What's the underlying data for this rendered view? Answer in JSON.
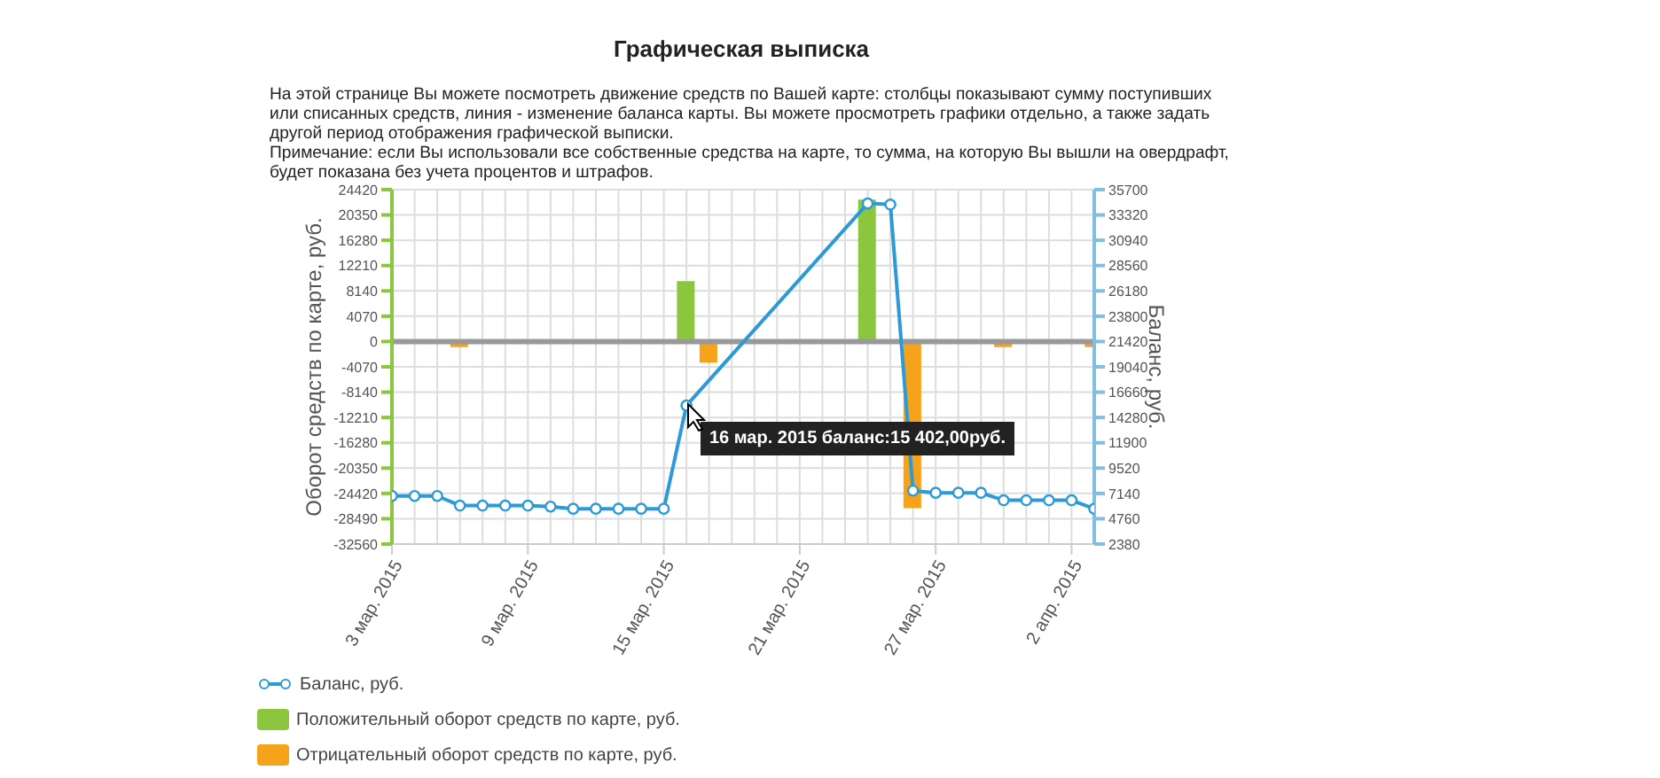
{
  "chart_data": {
    "type": "bar",
    "title": "Графическая выписка",
    "annotations": [
      "На этой странице Вы можете посмотреть движение средств по Вашей карте: столбцы показывают сумму поступивших или списанных средств, линия - изменение баланса карты. Вы можете просмотреть графики отдельно, а также задать другой период отображения графической выписки.",
      "Примечание: если Вы использовали все собственные средства на карте, то сумма, на которую Вы вышли на овердрафт, будет показана без учета процентов и штрафов.",
      "16 мар. 2015 баланс:15 402,00руб."
    ],
    "ylabel": "Оборот средств по карте, руб.",
    "y2label": "Баланс, руб.",
    "series": [
      {
        "name": "Баланс, руб.",
        "type": "line",
        "axis": "y2",
        "color": "#2b9ad6",
        "x": [
          "2015-03-03",
          "2015-03-04",
          "2015-03-05",
          "2015-03-06",
          "2015-03-07",
          "2015-03-08",
          "2015-03-09",
          "2015-03-10",
          "2015-03-11",
          "2015-03-12",
          "2015-03-13",
          "2015-03-14",
          "2015-03-15",
          "2015-03-16",
          "2015-03-24",
          "2015-03-25",
          "2015-03-26",
          "2015-03-27",
          "2015-03-28",
          "2015-03-29",
          "2015-03-30",
          "2015-03-31",
          "2015-04-01",
          "2015-04-02",
          "2015-04-03"
        ],
        "values": [
          6900,
          6900,
          6900,
          6000,
          6000,
          6000,
          6000,
          5900,
          5700,
          5700,
          5700,
          5700,
          5700,
          15402,
          34400,
          34300,
          7400,
          7200,
          7200,
          7200,
          6500,
          6500,
          6500,
          6500,
          5700
        ]
      },
      {
        "name": "Положительный оборот средств по карте, руб.",
        "color": "#8cc63f",
        "x": [
          "2015-03-16",
          "2015-03-24"
        ],
        "values": [
          9700,
          22800
        ]
      },
      {
        "name": "Отрицательный оборот средств по карте, руб.",
        "color": "#f7a21b",
        "x": [
          "2015-03-06",
          "2015-03-10",
          "2015-03-11",
          "2015-03-17",
          "2015-03-25",
          "2015-03-26",
          "2015-03-27",
          "2015-03-30",
          "2015-04-03"
        ],
        "values": [
          -900,
          null,
          null,
          -3400,
          null,
          -26800,
          null,
          -900,
          -900
        ]
      }
    ],
    "xlim": [
      "2015-03-03",
      "2015-04-03"
    ],
    "xticks": [
      {
        "value": "2015-03-03",
        "label": "3 мар. 2015"
      },
      {
        "value": "2015-03-09",
        "label": "9 мар. 2015"
      },
      {
        "value": "2015-03-15",
        "label": "15 мар. 2015"
      },
      {
        "value": "2015-03-21",
        "label": "21 мар. 2015"
      },
      {
        "value": "2015-03-27",
        "label": "27 мар. 2015"
      },
      {
        "value": "2015-04-02",
        "label": "2 апр. 2015"
      }
    ],
    "ylim": [
      -32560,
      24420
    ],
    "yticks": [
      -32560,
      -28490,
      -24420,
      -20350,
      -16280,
      -12210,
      -8140,
      -4070,
      0,
      4070,
      8140,
      12210,
      16280,
      20350,
      24420
    ],
    "y2lim": [
      2380,
      35700
    ],
    "y2ticks": [
      2380,
      4760,
      7140,
      9520,
      11900,
      14280,
      16660,
      19040,
      21420,
      23800,
      26180,
      28560,
      30940,
      33320,
      35700
    ],
    "ref_lines": [
      {
        "axis": "y",
        "value": 0,
        "color": "#999999"
      }
    ],
    "grid": true,
    "marker": "circle",
    "line_style": "solid",
    "legend": "bottom left"
  }
}
